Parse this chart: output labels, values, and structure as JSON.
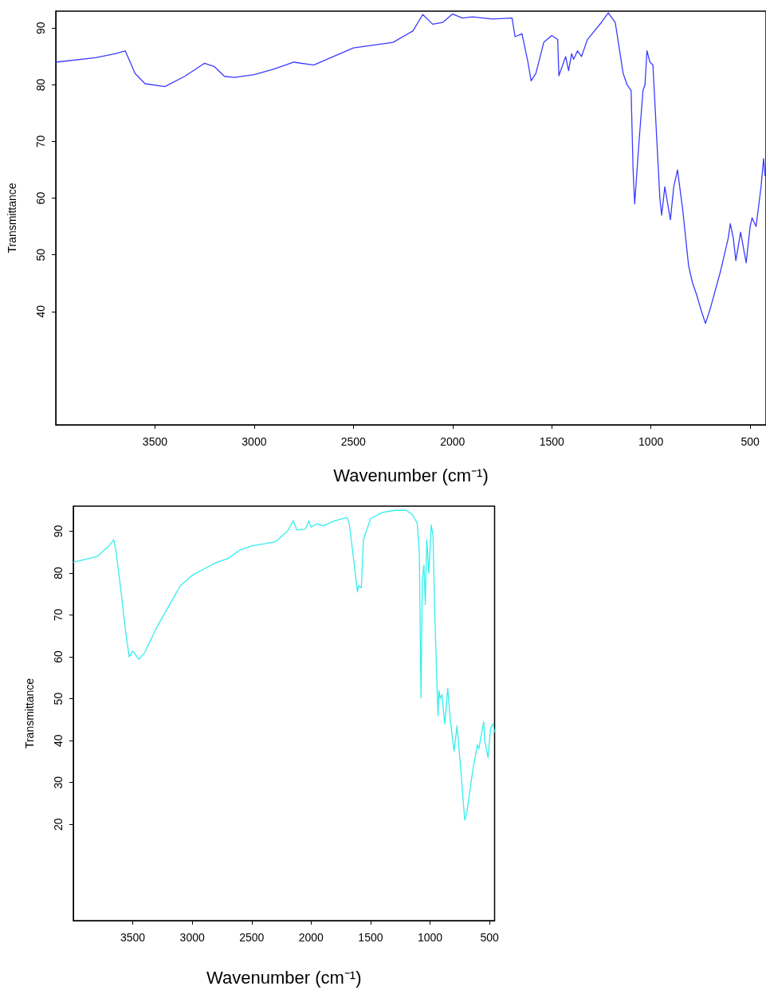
{
  "chart_data": [
    {
      "type": "line",
      "xlabel": "Wavenumber (cm⁻¹)",
      "ylabel": "Transmittance",
      "xlim": [
        4000,
        420
      ],
      "ylim": [
        20,
        93
      ],
      "xticks": [
        3500,
        3000,
        2500,
        2000,
        1500,
        1000,
        500
      ],
      "yticks": [
        40,
        50,
        60,
        70,
        80,
        90
      ],
      "marker": "none",
      "line_style": "solid",
      "series": [
        {
          "color": "#3b3bff",
          "x": [
            4000,
            3800,
            3700,
            3650,
            3600,
            3550,
            3450,
            3350,
            3250,
            3200,
            3150,
            3100,
            3000,
            2900,
            2800,
            2700,
            2600,
            2500,
            2400,
            2300,
            2200,
            2150,
            2100,
            2050,
            2000,
            1950,
            1900,
            1800,
            1700,
            1685,
            1650,
            1620,
            1604,
            1580,
            1540,
            1500,
            1470,
            1464,
            1430,
            1415,
            1400,
            1390,
            1370,
            1350,
            1320,
            1250,
            1215,
            1180,
            1140,
            1120,
            1100,
            1090,
            1082,
            1060,
            1040,
            1030,
            1020,
            1005,
            990,
            970,
            955,
            946,
            930,
            902,
            885,
            866,
            840,
            810,
            790,
            770,
            745,
            725,
            710,
            697,
            650,
            610,
            600,
            585,
            572,
            548,
            520,
            500,
            490,
            470,
            445,
            432,
            425,
            420
          ],
          "values": [
            84,
            84.8,
            85.5,
            86,
            82,
            80.2,
            79.7,
            81.5,
            83.8,
            83.2,
            81.5,
            81.3,
            81.8,
            82.8,
            84,
            83.5,
            85,
            86.5,
            87,
            87.5,
            89.5,
            92.4,
            90.7,
            91,
            92.5,
            91.8,
            92,
            91.6,
            91.8,
            88.5,
            89,
            84,
            80.7,
            82,
            87.5,
            88.7,
            88,
            81.6,
            85,
            82.5,
            85.5,
            84.5,
            86,
            85,
            88,
            91,
            92.7,
            91,
            82,
            80,
            79,
            65,
            59,
            70,
            79,
            80,
            86,
            84,
            83.5,
            70,
            60,
            57,
            62,
            56.2,
            62,
            65,
            58,
            48,
            45,
            43,
            40,
            37.9,
            39.5,
            41,
            47,
            53,
            55.5,
            53,
            49,
            54,
            48.6,
            55,
            56.5,
            55,
            62,
            67,
            64,
            65
          ]
        }
      ]
    },
    {
      "type": "line",
      "xlabel": "Wavenumber (cm⁻¹)",
      "ylabel": "Transmittance",
      "xlim": [
        4000,
        457
      ],
      "ylim": [
        -3,
        96
      ],
      "xticks": [
        3500,
        3000,
        2500,
        2000,
        1500,
        1000,
        500
      ],
      "yticks": [
        20,
        30,
        40,
        50,
        60,
        70,
        80,
        90
      ],
      "marker": "none",
      "line_style": "solid",
      "series": [
        {
          "color": "#33eeee",
          "x": [
            4000,
            3800,
            3700,
            3660,
            3640,
            3600,
            3560,
            3530,
            3500,
            3450,
            3400,
            3300,
            3200,
            3100,
            3000,
            2900,
            2800,
            2700,
            2600,
            2500,
            2400,
            2300,
            2200,
            2150,
            2120,
            2050,
            2020,
            2000,
            1950,
            1900,
            1800,
            1700,
            1680,
            1650,
            1610,
            1600,
            1578,
            1560,
            1500,
            1400,
            1300,
            1200,
            1150,
            1108,
            1090,
            1076,
            1065,
            1051,
            1040,
            1027,
            1010,
            990,
            975,
            960,
            933,
            925,
            915,
            900,
            876,
            851,
            830,
            798,
            773,
            750,
            708,
            690,
            640,
            602,
            590,
            549,
            540,
            512,
            490,
            470,
            457
          ],
          "values": [
            82.6,
            84,
            86.5,
            88,
            85,
            76,
            66,
            60,
            61.4,
            59.4,
            61,
            67,
            72,
            77,
            79.5,
            81,
            82.5,
            83.5,
            85.5,
            86.5,
            87,
            87.5,
            90,
            92.5,
            90.3,
            90.5,
            92.5,
            91,
            91.8,
            91.3,
            92.5,
            93.3,
            92,
            85,
            75.5,
            77,
            76.5,
            88,
            93,
            94.5,
            95,
            95,
            94,
            92,
            85,
            50.2,
            78,
            82,
            72.5,
            88,
            80,
            91.5,
            89,
            70,
            45.9,
            52,
            50,
            51,
            44,
            52.5,
            45,
            37.5,
            43.5,
            36,
            21,
            23,
            33,
            39,
            38,
            44.5,
            40,
            36,
            43,
            44,
            42
          ]
        }
      ]
    }
  ]
}
